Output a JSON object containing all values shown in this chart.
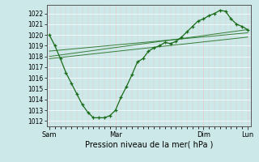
{
  "background_color": "#cce8e8",
  "plot_bg_color": "#d8eee8",
  "grid_color_major": "#ffffff",
  "grid_color_minor": "#c8e0dc",
  "line_color": "#1a6b1a",
  "xlabel": "Pression niveau de la mer( hPa )",
  "ylim": [
    1011.5,
    1022.8
  ],
  "yticks": [
    1012,
    1013,
    1014,
    1015,
    1016,
    1017,
    1018,
    1019,
    1020,
    1021,
    1022
  ],
  "xlim": [
    -3,
    220
  ],
  "xtick_positions": [
    0,
    72,
    168,
    216
  ],
  "xtick_labels": [
    "Sam",
    "Mar",
    "Dim",
    "Lun"
  ],
  "series1_x": [
    0,
    6,
    12,
    18,
    24,
    30,
    36,
    42,
    48,
    54,
    60,
    66,
    72,
    78,
    84,
    90,
    96,
    102,
    108,
    114,
    120,
    126,
    132,
    138,
    144,
    150,
    156,
    162,
    168,
    174,
    180,
    186,
    192,
    198,
    204,
    210,
    216
  ],
  "series1_y": [
    1020,
    1019,
    1017.8,
    1016.5,
    1015.5,
    1014.5,
    1013.5,
    1012.8,
    1012.3,
    1012.3,
    1012.3,
    1012.5,
    1013.0,
    1014.2,
    1015.2,
    1016.3,
    1017.5,
    1017.8,
    1018.5,
    1018.8,
    1019.0,
    1019.3,
    1019.2,
    1019.4,
    1019.8,
    1020.3,
    1020.8,
    1021.3,
    1021.5,
    1021.8,
    1022.0,
    1022.3,
    1022.2,
    1021.5,
    1021.0,
    1020.8,
    1020.5
  ],
  "series2_x": [
    0,
    216
  ],
  "series2_y": [
    1018.0,
    1020.5
  ],
  "series3_x": [
    0,
    216
  ],
  "series3_y": [
    1017.8,
    1019.8
  ],
  "series4_x": [
    0,
    216
  ],
  "series4_y": [
    1018.5,
    1020.2
  ]
}
